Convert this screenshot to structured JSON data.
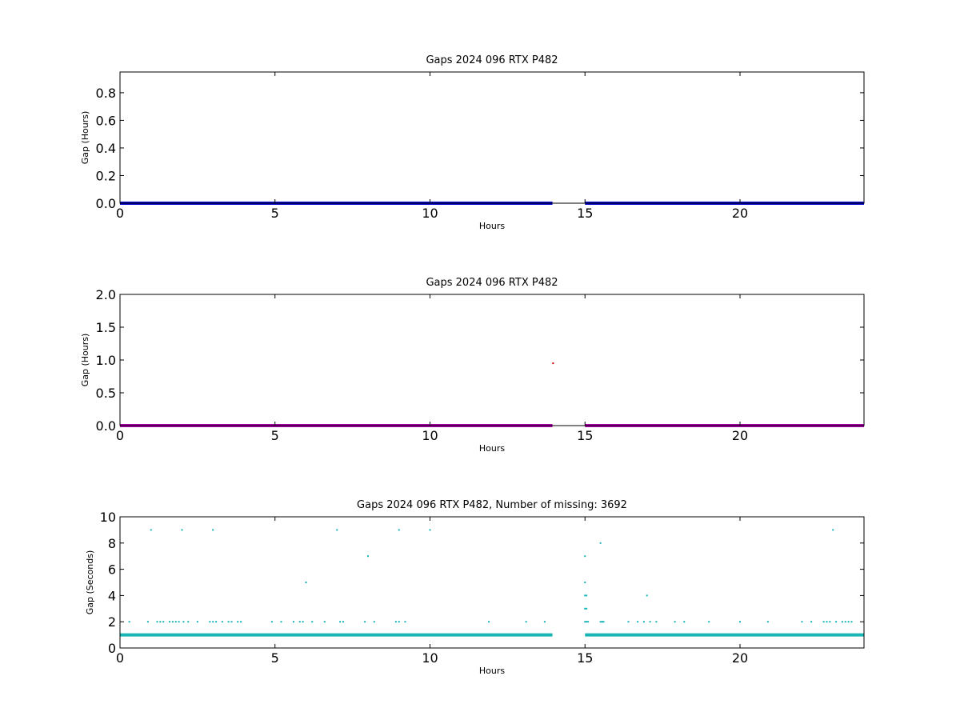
{
  "chart_data": [
    {
      "type": "scatter",
      "title": "Gaps 2024 096 RTX  P482",
      "xlabel": "Hours",
      "ylabel": "Gap (Hours)",
      "xlim": [
        0,
        24
      ],
      "ylim": [
        0,
        0.95
      ],
      "xticks": [
        0,
        5,
        10,
        15,
        20
      ],
      "xtick_labels": [
        "0",
        "5",
        "10",
        "15",
        "20"
      ],
      "yticks": [
        0,
        0.2,
        0.4,
        0.6,
        0.8
      ],
      "ytick_labels": [
        "0.0",
        "0.2",
        "0.4",
        "0.6",
        "0.8"
      ],
      "grid": false,
      "series": [
        {
          "color": "#0000cc",
          "baseline_value": 0.0,
          "baseline_segments": [
            [
              0,
              13.95
            ],
            [
              15.0,
              24
            ]
          ],
          "points": []
        }
      ]
    },
    {
      "type": "scatter",
      "title": "Gaps 2024 096 RTX  P482",
      "xlabel": "Hours",
      "ylabel": "Gap (Hours)",
      "xlim": [
        0,
        24
      ],
      "ylim": [
        0,
        2.0
      ],
      "xticks": [
        0,
        5,
        10,
        15,
        20
      ],
      "xtick_labels": [
        "0",
        "5",
        "10",
        "15",
        "20"
      ],
      "yticks": [
        0,
        0.5,
        1.0,
        1.5,
        2.0
      ],
      "ytick_labels": [
        "0.0",
        "0.5",
        "1.0",
        "1.5",
        "2.0"
      ],
      "grid": false,
      "series": [
        {
          "color": "#aa00aa",
          "baseline_value": 0.0,
          "baseline_segments": [
            [
              0,
              13.95
            ],
            [
              15.0,
              24
            ]
          ],
          "points": [
            [
              13.97,
              0.95
            ]
          ],
          "point_color": "#cc0000"
        }
      ]
    },
    {
      "type": "scatter",
      "title": "Gaps 2024 096 RTX  P482, Number of missing: 3692",
      "xlabel": "Hours",
      "ylabel": "Gap (Seconds)",
      "xlim": [
        0,
        24
      ],
      "ylim": [
        0,
        10
      ],
      "xticks": [
        0,
        5,
        10,
        15,
        20
      ],
      "xtick_labels": [
        "0",
        "5",
        "10",
        "15",
        "20"
      ],
      "yticks": [
        0,
        2,
        4,
        6,
        8,
        10
      ],
      "ytick_labels": [
        "0",
        "2",
        "4",
        "6",
        "8",
        "10"
      ],
      "grid": false,
      "series": [
        {
          "color": "#17b5b5",
          "baseline_value": 1.0,
          "baseline_segments": [
            [
              0,
              13.95
            ],
            [
              15.0,
              24
            ]
          ],
          "points": [
            [
              1.0,
              9
            ],
            [
              2.0,
              9
            ],
            [
              3.0,
              9
            ],
            [
              7.0,
              9
            ],
            [
              9.0,
              9
            ],
            [
              10.0,
              9
            ],
            [
              23.0,
              9
            ],
            [
              8.0,
              7
            ],
            [
              15.0,
              7
            ],
            [
              15.5,
              8
            ],
            [
              6.0,
              5
            ],
            [
              17.0,
              4
            ],
            [
              15.0,
              5
            ],
            [
              15.0,
              4
            ],
            [
              15.05,
              4
            ],
            [
              15.0,
              3
            ],
            [
              15.05,
              3
            ],
            [
              0.3,
              2
            ],
            [
              0.9,
              2
            ],
            [
              1.2,
              2
            ],
            [
              1.3,
              2
            ],
            [
              1.4,
              2
            ],
            [
              1.6,
              2
            ],
            [
              1.7,
              2
            ],
            [
              1.8,
              2
            ],
            [
              1.9,
              2
            ],
            [
              2.05,
              2
            ],
            [
              2.2,
              2
            ],
            [
              2.5,
              2
            ],
            [
              2.9,
              2
            ],
            [
              3.0,
              2
            ],
            [
              3.1,
              2
            ],
            [
              3.3,
              2
            ],
            [
              3.5,
              2
            ],
            [
              3.6,
              2
            ],
            [
              3.8,
              2
            ],
            [
              3.9,
              2
            ],
            [
              4.9,
              2
            ],
            [
              5.2,
              2
            ],
            [
              5.6,
              2
            ],
            [
              5.8,
              2
            ],
            [
              5.9,
              2
            ],
            [
              6.2,
              2
            ],
            [
              6.6,
              2
            ],
            [
              7.1,
              2
            ],
            [
              7.2,
              2
            ],
            [
              7.9,
              2
            ],
            [
              8.2,
              2
            ],
            [
              8.9,
              2
            ],
            [
              9.0,
              2
            ],
            [
              9.2,
              2
            ],
            [
              11.9,
              2
            ],
            [
              13.1,
              2
            ],
            [
              13.7,
              2
            ],
            [
              15.0,
              2
            ],
            [
              15.05,
              2
            ],
            [
              15.1,
              2
            ],
            [
              15.5,
              2
            ],
            [
              15.55,
              2
            ],
            [
              15.6,
              2
            ],
            [
              16.4,
              2
            ],
            [
              16.7,
              2
            ],
            [
              16.9,
              2
            ],
            [
              17.1,
              2
            ],
            [
              17.3,
              2
            ],
            [
              17.9,
              2
            ],
            [
              18.2,
              2
            ],
            [
              19.0,
              2
            ],
            [
              20.0,
              2
            ],
            [
              20.9,
              2
            ],
            [
              22.0,
              2
            ],
            [
              22.3,
              2
            ],
            [
              22.7,
              2
            ],
            [
              22.8,
              2
            ],
            [
              22.9,
              2
            ],
            [
              23.1,
              2
            ],
            [
              23.3,
              2
            ],
            [
              23.4,
              2
            ],
            [
              23.5,
              2
            ],
            [
              23.6,
              2
            ]
          ]
        }
      ]
    }
  ]
}
